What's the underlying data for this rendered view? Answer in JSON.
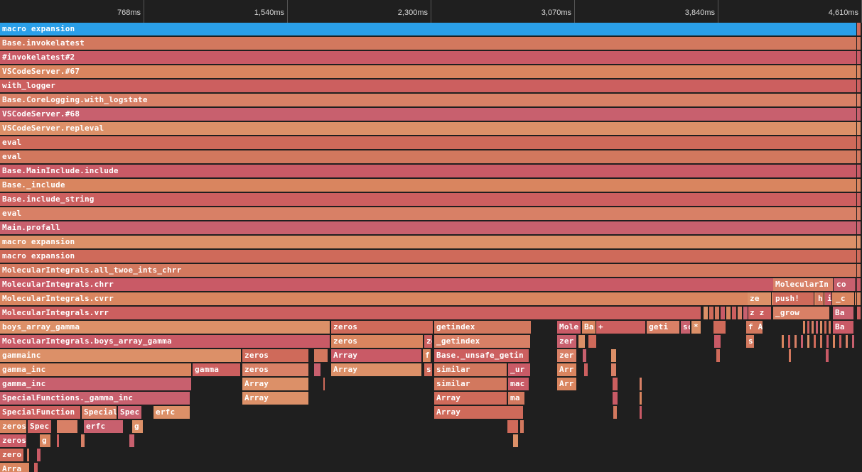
{
  "timeline": {
    "ticks": [
      "768ms",
      "1,540ms",
      "2,300ms",
      "3,070ms",
      "3,840ms",
      "4,610ms"
    ]
  },
  "colors": {
    "background": "#1f1f1f",
    "selected": "#2a9fe8",
    "palette": [
      "#cf6a5a",
      "#d2785e",
      "#c95a66",
      "#d9855f",
      "#cc5f5f",
      "#d88066",
      "#c8606e",
      "#dc9068"
    ]
  },
  "flame": {
    "selected_frame": "macro expansion",
    "stack": [
      "macro expansion",
      "Base.invokelatest",
      "#invokelatest#2",
      "VSCodeServer.#67",
      "with_logger",
      "Base.CoreLogging.with_logstate",
      "VSCodeServer.#68",
      "VSCodeServer.repleval",
      "eval",
      "eval",
      "Base.MainInclude.include",
      "Base._include",
      "Base.include_string",
      "eval",
      "Main.profall",
      "macro expansion",
      "macro expansion",
      "MolecularIntegrals.all_twoe_ints_chrr",
      "MolecularIntegrals.chrr",
      "MolecularIntegrals.cvrr",
      "MolecularIntegrals.vrr"
    ],
    "labels": {
      "boys_array_gamma": "boys_array_gamma",
      "mi_boys_array_gamma": "MolecularIntegrals.boys_array_gamma",
      "gammainc": "gammainc",
      "gamma_inc_1": "gamma_inc",
      "gamma_inc_2": "gamma_inc",
      "gamma": "gamma",
      "sf_gamma_inc": "SpecialFunctions._gamma_inc",
      "specialfunction": "SpecialFunction",
      "special_1": "Special",
      "spec_1": "Spec",
      "erfc_1": "erfc",
      "zeros_s1": "zeros",
      "spec_2": "Spec",
      "erfc_2": "erfc",
      "g_1": "g",
      "zeros_s2": "zeros",
      "g_2": "g",
      "zero_s3": "zero",
      "arra_s4": "Arra",
      "zeros_a1": "zeros",
      "zeros_a2": "zeros",
      "array_a3": "Array",
      "array_a4": "Array",
      "zeros_b0": "zeros",
      "zeros_b1": "zeros",
      "array_b2": "Array",
      "array_b3": "Array",
      "z_b1": "ze",
      "f_b2": "f",
      "s_b3": "s",
      "getindex_c0": "getindex",
      "getindex_c1": "_getindex",
      "unsafe_getin": "Base._unsafe_getin",
      "similar_1": "similar",
      "similar_2": "similar",
      "array_c4": "Array",
      "array_c5": "Array",
      "ur_c3": "_ur",
      "mac_c4": "mac",
      "ma_c5": "ma",
      "mole": "Mole",
      "ba_1": "Ba",
      "plus": "+",
      "geti": "geti",
      "sc": "sc",
      "star": "*",
      "zer_1": "zer",
      "zer_2": "zer",
      "arr_1": "Arr",
      "arr_2": "Arr",
      "f_a": "f A",
      "s_x": "s",
      "mi_trunc": "MolecularIn",
      "co": "co",
      "ze_r": "ze",
      "push": "push!",
      "h": "h",
      "i": "i",
      "uc": "_c",
      "z_z": "z z",
      "grow": "_grow",
      "ba_2": "Ba",
      "ba_3": "Ba"
    }
  }
}
